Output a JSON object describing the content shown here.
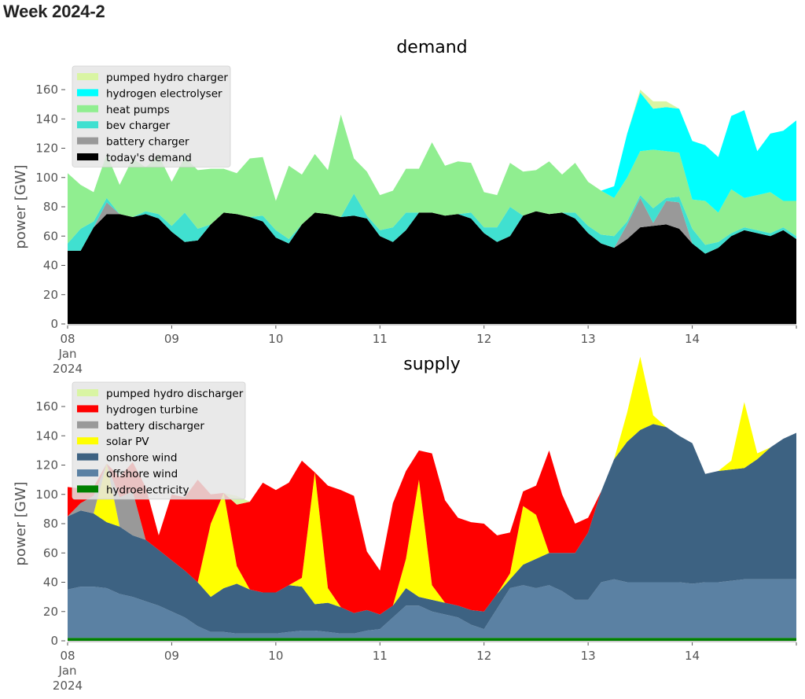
{
  "page": {
    "title": "Week 2024-2"
  },
  "chart_data": [
    {
      "type": "area",
      "stacked": true,
      "title": "demand",
      "xlabel": "",
      "ylabel": "power [GW]",
      "ylim": [
        0,
        175
      ],
      "yticks": [
        0,
        20,
        40,
        60,
        80,
        100,
        120,
        140,
        160
      ],
      "xlim_days": [
        0,
        7
      ],
      "xticks": [
        {
          "day": 0,
          "label": "08",
          "sub": [
            "Jan",
            "2024"
          ]
        },
        {
          "day": 1,
          "label": "09"
        },
        {
          "day": 2,
          "label": "10"
        },
        {
          "day": 3,
          "label": "11"
        },
        {
          "day": 4,
          "label": "12"
        },
        {
          "day": 5,
          "label": "13"
        },
        {
          "day": 6,
          "label": "14"
        }
      ],
      "legend_position": "upper-left",
      "x_step_hours": 3,
      "series": [
        {
          "name": "today's demand",
          "color": "#000000",
          "values": [
            50,
            50,
            66,
            75,
            75,
            73,
            75,
            72,
            63,
            56,
            57,
            68,
            76,
            75,
            73,
            70,
            59,
            55,
            68,
            76,
            75,
            73,
            74,
            72,
            60,
            56,
            64,
            76,
            76,
            74,
            75,
            72,
            62,
            56,
            60,
            74,
            77,
            75,
            76,
            72,
            62,
            55,
            52,
            58,
            66,
            67,
            68,
            65,
            55,
            48,
            52,
            60,
            64,
            62,
            60,
            64,
            58
          ]
        },
        {
          "name": "battery charger",
          "color": "#999999",
          "values": [
            0,
            0,
            0,
            8,
            0,
            0,
            0,
            0,
            0,
            0,
            0,
            0,
            0,
            0,
            0,
            0,
            0,
            0,
            0,
            0,
            0,
            0,
            0,
            0,
            0,
            0,
            0,
            0,
            0,
            0,
            0,
            0,
            0,
            0,
            0,
            0,
            0,
            0,
            0,
            0,
            0,
            0,
            0,
            10,
            20,
            2,
            16,
            18,
            0,
            0,
            0,
            0,
            0,
            0,
            0,
            0,
            0
          ]
        },
        {
          "name": "bev charger",
          "color": "#40e0d0",
          "values": [
            5,
            15,
            4,
            3,
            0,
            0,
            2,
            3,
            4,
            20,
            8,
            0,
            0,
            0,
            0,
            4,
            5,
            3,
            0,
            0,
            0,
            0,
            15,
            2,
            4,
            10,
            12,
            0,
            0,
            0,
            0,
            4,
            4,
            10,
            20,
            0,
            0,
            0,
            0,
            4,
            5,
            6,
            8,
            2,
            2,
            10,
            2,
            4,
            10,
            6,
            4,
            2,
            2,
            2,
            2,
            2,
            2
          ]
        },
        {
          "name": "heat pumps",
          "color": "#90ee90",
          "values": [
            48,
            30,
            20,
            30,
            20,
            40,
            30,
            40,
            30,
            38,
            40,
            38,
            30,
            28,
            40,
            40,
            20,
            50,
            34,
            40,
            30,
            70,
            24,
            30,
            24,
            25,
            30,
            30,
            48,
            34,
            36,
            34,
            24,
            22,
            30,
            30,
            28,
            36,
            26,
            34,
            30,
            30,
            26,
            30,
            30,
            40,
            32,
            30,
            20,
            30,
            20,
            30,
            20,
            24,
            28,
            18,
            24
          ]
        },
        {
          "name": "hydrogen electrolyser",
          "color": "#00ffff",
          "values": [
            0,
            0,
            0,
            0,
            0,
            0,
            0,
            0,
            0,
            0,
            0,
            0,
            0,
            0,
            0,
            0,
            0,
            0,
            0,
            0,
            0,
            0,
            0,
            0,
            0,
            0,
            0,
            0,
            0,
            0,
            0,
            0,
            0,
            0,
            0,
            0,
            0,
            0,
            0,
            0,
            0,
            0,
            8,
            30,
            40,
            28,
            30,
            30,
            40,
            38,
            38,
            50,
            60,
            30,
            40,
            48,
            55
          ]
        },
        {
          "name": "pumped hydro charger",
          "color": "#d9f5a3",
          "values": [
            0,
            0,
            0,
            0,
            0,
            0,
            0,
            0,
            0,
            0,
            0,
            0,
            0,
            0,
            0,
            0,
            0,
            0,
            0,
            0,
            0,
            0,
            0,
            0,
            0,
            0,
            0,
            0,
            0,
            0,
            0,
            0,
            0,
            0,
            0,
            0,
            0,
            0,
            0,
            0,
            0,
            0,
            0,
            0,
            2,
            5,
            4,
            0,
            0,
            0,
            0,
            0,
            0,
            0,
            0,
            0,
            0
          ]
        }
      ]
    },
    {
      "type": "area",
      "stacked": true,
      "title": "supply",
      "xlabel": "",
      "ylabel": "power [GW]",
      "ylim": [
        0,
        175
      ],
      "yticks": [
        0,
        20,
        40,
        60,
        80,
        100,
        120,
        140,
        160
      ],
      "xlim_days": [
        0,
        7
      ],
      "xticks": [
        {
          "day": 0,
          "label": "08",
          "sub": [
            "Jan",
            "2024"
          ]
        },
        {
          "day": 1,
          "label": "09"
        },
        {
          "day": 2,
          "label": "10"
        },
        {
          "day": 3,
          "label": "11"
        },
        {
          "day": 4,
          "label": "12"
        },
        {
          "day": 5,
          "label": "13"
        },
        {
          "day": 6,
          "label": "14"
        }
      ],
      "legend_position": "upper-left",
      "x_step_hours": 3,
      "series": [
        {
          "name": "hydroelectricity",
          "color": "#008000",
          "values": [
            2,
            2,
            2,
            2,
            2,
            2,
            2,
            2,
            2,
            2,
            2,
            2,
            2,
            2,
            2,
            2,
            2,
            2,
            2,
            2,
            2,
            2,
            2,
            2,
            2,
            2,
            2,
            2,
            2,
            2,
            2,
            2,
            2,
            2,
            2,
            2,
            2,
            2,
            2,
            2,
            2,
            2,
            2,
            2,
            2,
            2,
            2,
            2,
            2,
            2,
            2,
            2,
            2,
            2,
            2,
            2,
            2
          ]
        },
        {
          "name": "offshore wind",
          "color": "#5b81a3",
          "values": [
            33,
            35,
            35,
            34,
            30,
            28,
            25,
            22,
            18,
            14,
            8,
            4,
            4,
            3,
            3,
            3,
            3,
            4,
            5,
            5,
            4,
            3,
            3,
            5,
            6,
            14,
            22,
            22,
            18,
            16,
            14,
            9,
            6,
            20,
            34,
            36,
            34,
            36,
            32,
            26,
            26,
            38,
            40,
            38,
            38,
            38,
            38,
            38,
            37,
            38,
            38,
            39,
            40,
            40,
            40,
            40,
            40
          ]
        },
        {
          "name": "onshore wind",
          "color": "#3d6282",
          "values": [
            50,
            52,
            50,
            45,
            46,
            42,
            42,
            38,
            35,
            32,
            30,
            24,
            30,
            34,
            30,
            28,
            28,
            32,
            30,
            18,
            20,
            18,
            14,
            14,
            10,
            8,
            12,
            6,
            8,
            8,
            8,
            10,
            12,
            10,
            6,
            14,
            20,
            22,
            26,
            32,
            46,
            62,
            82,
            96,
            104,
            108,
            106,
            100,
            96,
            74,
            76,
            76,
            76,
            82,
            90,
            96,
            100
          ]
        },
        {
          "name": "solar PV",
          "color": "#ffff00",
          "values": [
            0,
            0,
            0,
            40,
            0,
            0,
            0,
            0,
            0,
            0,
            0,
            50,
            65,
            12,
            0,
            0,
            0,
            0,
            6,
            90,
            10,
            0,
            0,
            0,
            0,
            0,
            20,
            80,
            10,
            0,
            0,
            0,
            0,
            0,
            4,
            40,
            30,
            0,
            0,
            0,
            0,
            0,
            0,
            20,
            50,
            6,
            0,
            0,
            0,
            0,
            0,
            6,
            45,
            4,
            0,
            0,
            0
          ]
        },
        {
          "name": "battery discharger",
          "color": "#999999",
          "values": [
            0,
            5,
            12,
            0,
            20,
            30,
            0,
            0,
            0,
            0,
            0,
            0,
            0,
            0,
            0,
            0,
            0,
            0,
            0,
            0,
            0,
            0,
            0,
            0,
            0,
            0,
            0,
            0,
            0,
            0,
            0,
            0,
            0,
            0,
            0,
            0,
            0,
            0,
            0,
            0,
            0,
            0,
            0,
            0,
            0,
            0,
            0,
            0,
            0,
            0,
            0,
            0,
            0,
            0,
            0,
            0,
            0
          ]
        },
        {
          "name": "hydrogen turbine",
          "color": "#ff0000",
          "values": [
            20,
            10,
            6,
            0,
            14,
            20,
            36,
            10,
            45,
            50,
            70,
            20,
            0,
            42,
            60,
            75,
            70,
            70,
            80,
            0,
            70,
            80,
            80,
            40,
            30,
            70,
            60,
            20,
            90,
            70,
            60,
            60,
            60,
            40,
            28,
            10,
            20,
            70,
            40,
            20,
            10,
            0,
            0,
            0,
            0,
            0,
            0,
            0,
            0,
            0,
            0,
            0,
            0,
            0,
            0,
            0,
            0
          ]
        },
        {
          "name": "pumped hydro discharger",
          "color": "#d9f5a3",
          "values": [
            0,
            0,
            0,
            0,
            0,
            0,
            0,
            0,
            0,
            0,
            0,
            0,
            0,
            6,
            0,
            0,
            0,
            0,
            0,
            0,
            0,
            0,
            0,
            0,
            0,
            0,
            0,
            0,
            0,
            0,
            0,
            0,
            0,
            0,
            0,
            0,
            0,
            0,
            0,
            0,
            0,
            0,
            0,
            0,
            0,
            0,
            0,
            0,
            0,
            0,
            0,
            0,
            0,
            0,
            0,
            0,
            0
          ]
        }
      ]
    }
  ],
  "legends": {
    "demand": [
      "pumped hydro charger",
      "hydrogen electrolyser",
      "heat pumps",
      "bev charger",
      "battery charger",
      "today's demand"
    ],
    "supply": [
      "pumped hydro discharger",
      "hydrogen turbine",
      "battery discharger",
      "solar PV",
      "onshore wind",
      "offshore wind",
      "hydroelectricity"
    ]
  }
}
